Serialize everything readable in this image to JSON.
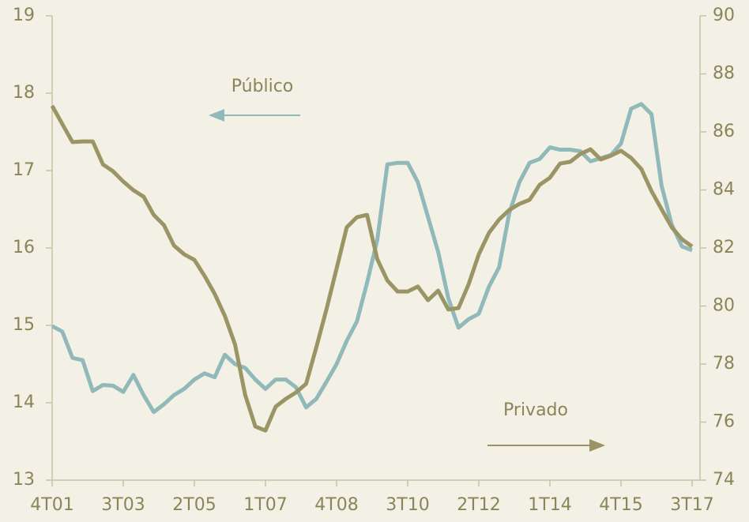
{
  "chart_data": {
    "type": "line",
    "categories": [
      "4T01",
      null,
      null,
      null,
      null,
      null,
      null,
      "3T03",
      null,
      null,
      null,
      null,
      null,
      null,
      "2T05",
      null,
      null,
      null,
      null,
      null,
      null,
      "1T07",
      null,
      null,
      null,
      null,
      null,
      null,
      "4T08",
      null,
      null,
      null,
      null,
      null,
      null,
      "3T10",
      null,
      null,
      null,
      null,
      null,
      null,
      "2T12",
      null,
      null,
      null,
      null,
      null,
      null,
      "1T14",
      null,
      null,
      null,
      null,
      null,
      null,
      "4T15",
      null,
      null,
      null,
      null,
      null,
      null,
      "3T17"
    ],
    "series": [
      {
        "name": "Público",
        "color": "#91b9b9",
        "axis": "y",
        "values": [
          14.99,
          14.92,
          14.58,
          14.55,
          14.15,
          14.23,
          14.22,
          14.14,
          14.36,
          14.1,
          13.88,
          13.98,
          14.1,
          14.18,
          14.3,
          14.38,
          14.33,
          14.62,
          14.5,
          14.45,
          14.3,
          14.18,
          14.3,
          14.3,
          14.2,
          13.94,
          14.05,
          14.27,
          14.5,
          14.8,
          15.05,
          15.55,
          16.1,
          17.08,
          17.1,
          17.1,
          16.85,
          16.4,
          15.95,
          15.35,
          14.97,
          15.08,
          15.15,
          15.5,
          15.75,
          16.45,
          16.85,
          17.1,
          17.15,
          17.3,
          17.27,
          17.27,
          17.25,
          17.12,
          17.16,
          17.2,
          17.35,
          17.8,
          17.86,
          17.73,
          16.8,
          16.3,
          16.02,
          15.97
        ]
      },
      {
        "name": "Privado",
        "color": "#9b9566",
        "axis": "y2",
        "values": [
          86.9,
          86.27,
          85.65,
          85.67,
          85.67,
          84.88,
          84.64,
          84.29,
          83.99,
          83.77,
          83.14,
          82.79,
          82.08,
          81.78,
          81.59,
          81.04,
          80.42,
          79.66,
          78.68,
          76.94,
          75.85,
          75.71,
          76.53,
          76.8,
          77.02,
          77.32,
          78.57,
          79.88,
          81.29,
          82.71,
          83.06,
          83.14,
          81.62,
          80.88,
          80.5,
          80.5,
          80.67,
          80.2,
          80.53,
          79.88,
          79.93,
          80.75,
          81.78,
          82.52,
          82.98,
          83.31,
          83.52,
          83.66,
          84.18,
          84.42,
          84.91,
          84.97,
          85.24,
          85.4,
          85.05,
          85.18,
          85.35,
          85.1,
          84.72,
          83.96,
          83.33,
          82.71,
          82.3,
          82.05
        ]
      }
    ],
    "ylim": [
      13,
      19
    ],
    "yticks": [
      13,
      14,
      15,
      16,
      17,
      18,
      19
    ],
    "y2lim": [
      74,
      90
    ],
    "y2ticks": [
      74,
      76,
      78,
      80,
      82,
      84,
      86,
      88,
      90
    ],
    "grid": false
  }
}
